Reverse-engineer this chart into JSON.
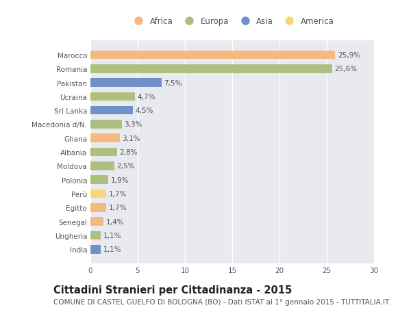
{
  "countries": [
    "Marocco",
    "Romania",
    "Pakistan",
    "Ucraina",
    "Sri Lanka",
    "Macedonia d/N.",
    "Ghana",
    "Albania",
    "Moldova",
    "Polonia",
    "Perù",
    "Egitto",
    "Senegal",
    "Ungheria",
    "India"
  ],
  "values": [
    25.9,
    25.6,
    7.5,
    4.7,
    4.5,
    3.3,
    3.1,
    2.8,
    2.5,
    1.9,
    1.7,
    1.7,
    1.4,
    1.1,
    1.1
  ],
  "labels": [
    "25,9%",
    "25,6%",
    "7,5%",
    "4,7%",
    "4,5%",
    "3,3%",
    "3,1%",
    "2,8%",
    "2,5%",
    "1,9%",
    "1,7%",
    "1,7%",
    "1,4%",
    "1,1%",
    "1,1%"
  ],
  "continents": [
    "Africa",
    "Europa",
    "Asia",
    "Europa",
    "Asia",
    "Europa",
    "Africa",
    "Europa",
    "Europa",
    "Europa",
    "America",
    "Africa",
    "Africa",
    "Europa",
    "Asia"
  ],
  "colors": {
    "Africa": "#F5B97F",
    "Europa": "#AEBF80",
    "Asia": "#7090C8",
    "America": "#F5D878"
  },
  "legend_order": [
    "Africa",
    "Europa",
    "Asia",
    "America"
  ],
  "title": "Cittadini Stranieri per Cittadinanza - 2015",
  "subtitle": "COMUNE DI CASTEL GUELFO DI BOLOGNA (BO) - Dati ISTAT al 1° gennaio 2015 - TUTTITALIA.IT",
  "xlim": [
    0,
    30
  ],
  "xticks": [
    0,
    5,
    10,
    15,
    20,
    25,
    30
  ],
  "figure_bg": "#ffffff",
  "axes_bg": "#e8eaf0",
  "grid_color": "#ffffff",
  "text_color": "#555555",
  "title_color": "#222222",
  "subtitle_color": "#555555",
  "title_fontsize": 10.5,
  "subtitle_fontsize": 7.5,
  "label_fontsize": 7.5,
  "tick_fontsize": 7.5,
  "legend_fontsize": 8.5
}
